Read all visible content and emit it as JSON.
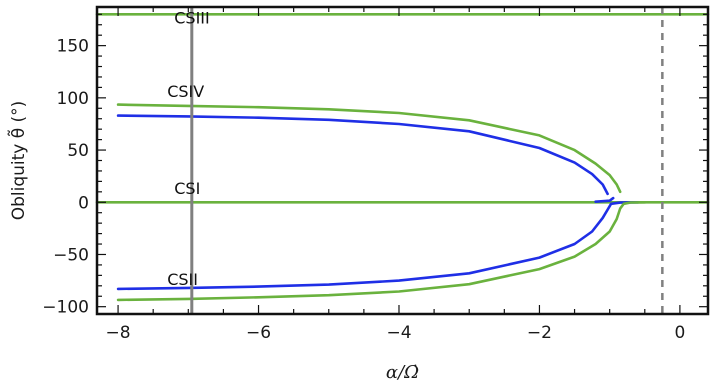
{
  "chart_data": {
    "type": "line",
    "xlabel": "α/Ω̇",
    "ylabel": "Obliquity θ̃ (°)",
    "xlim": [
      -8.3,
      0.4
    ],
    "ylim": [
      -107,
      187
    ],
    "x_ticks": [
      -8,
      -6,
      -4,
      -2,
      0
    ],
    "y_ticks": [
      -100,
      -50,
      0,
      50,
      100,
      150
    ],
    "grid": false,
    "legend": "none",
    "colors": {
      "green": "#6ab23e",
      "blue": "#1f2fe6",
      "vline": "#808080"
    },
    "vertical_lines": [
      {
        "x": -6.95,
        "style": "solid"
      },
      {
        "x": -0.25,
        "style": "dashed"
      }
    ],
    "annotations": [
      {
        "text": "CSIII",
        "x": -7.2,
        "y": 171
      },
      {
        "text": "CSIV",
        "x": -7.3,
        "y": 101
      },
      {
        "text": "CSI",
        "x": -7.2,
        "y": 8
      },
      {
        "text": "CSII",
        "x": -7.3,
        "y": -79
      }
    ],
    "series": [
      {
        "color": "green",
        "points": [
          [
            -8.3,
            180
          ],
          [
            0.4,
            180
          ]
        ]
      },
      {
        "color": "green",
        "points": [
          [
            -8.0,
            93.5
          ],
          [
            -7.0,
            92.3
          ],
          [
            -6.0,
            91.0
          ],
          [
            -5.0,
            89.0
          ],
          [
            -4.0,
            85.5
          ],
          [
            -3.0,
            78.5
          ],
          [
            -2.0,
            64.0
          ],
          [
            -1.5,
            50.0
          ],
          [
            -1.2,
            37.0
          ],
          [
            -1.0,
            26.0
          ],
          [
            -0.9,
            17.0
          ],
          [
            -0.85,
            10.0
          ]
        ]
      },
      {
        "color": "blue",
        "points": [
          [
            -8.0,
            83.0
          ],
          [
            -7.0,
            82.2
          ],
          [
            -6.0,
            81.0
          ],
          [
            -5.0,
            79.0
          ],
          [
            -4.0,
            75.0
          ],
          [
            -3.0,
            68.0
          ],
          [
            -2.0,
            52.0
          ],
          [
            -1.5,
            38.0
          ],
          [
            -1.25,
            27.0
          ],
          [
            -1.1,
            17.0
          ],
          [
            -1.03,
            8.0
          ]
        ]
      },
      {
        "color": "green",
        "points": [
          [
            -8.3,
            0
          ],
          [
            0.4,
            0
          ]
        ]
      },
      {
        "color": "blue",
        "points": [
          [
            -1.2,
            0.5
          ],
          [
            -1.0,
            1.5
          ],
          [
            -0.95,
            4.0
          ]
        ]
      },
      {
        "color": "blue",
        "points": [
          [
            -8.0,
            -83.0
          ],
          [
            -7.0,
            -82.0
          ],
          [
            -6.0,
            -80.8
          ],
          [
            -5.0,
            -78.8
          ],
          [
            -4.0,
            -75.0
          ],
          [
            -3.0,
            -68.0
          ],
          [
            -2.0,
            -53.0
          ],
          [
            -1.5,
            -40.0
          ],
          [
            -1.25,
            -28.0
          ],
          [
            -1.1,
            -15.0
          ],
          [
            -1.02,
            -6.0
          ],
          [
            -0.98,
            -1.5
          ],
          [
            -0.85,
            -0.3
          ],
          [
            -0.6,
            0
          ]
        ]
      },
      {
        "color": "green",
        "points": [
          [
            -8.0,
            -93.5
          ],
          [
            -7.0,
            -92.5
          ],
          [
            -6.0,
            -91.0
          ],
          [
            -5.0,
            -89.0
          ],
          [
            -4.0,
            -85.5
          ],
          [
            -3.0,
            -78.5
          ],
          [
            -2.0,
            -64.0
          ],
          [
            -1.5,
            -52.0
          ],
          [
            -1.2,
            -40.0
          ],
          [
            -1.0,
            -28.0
          ],
          [
            -0.9,
            -16.0
          ],
          [
            -0.85,
            -6.0
          ],
          [
            -0.8,
            -1.5
          ],
          [
            -0.7,
            -0.2
          ],
          [
            -0.5,
            0
          ]
        ]
      }
    ]
  }
}
